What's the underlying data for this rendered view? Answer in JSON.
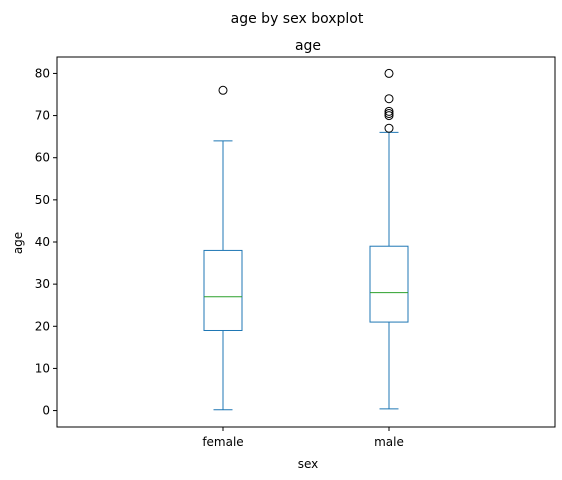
{
  "chart_data": {
    "type": "box",
    "suptitle": "age by sex boxplot",
    "title": "age",
    "xlabel": "sex",
    "ylabel": "age",
    "ylim": [
      -3.9,
      83.9
    ],
    "yticks": [
      0,
      10,
      20,
      30,
      40,
      50,
      60,
      70,
      80
    ],
    "grid": false,
    "categories": [
      "female",
      "male"
    ],
    "boxes": [
      {
        "category": "female",
        "whisker_low": 0.2,
        "q1": 19,
        "median": 27,
        "q3": 38,
        "whisker_high": 64,
        "outliers": [
          76
        ]
      },
      {
        "category": "male",
        "whisker_low": 0.4,
        "q1": 21,
        "median": 28,
        "q3": 39,
        "whisker_high": 66,
        "outliers": [
          67,
          70,
          70.5,
          71,
          74,
          80
        ]
      }
    ],
    "colors": {
      "box": "#1f77b4",
      "median": "#2ca02c",
      "outlier": "#000000",
      "axes": "#000000"
    }
  }
}
